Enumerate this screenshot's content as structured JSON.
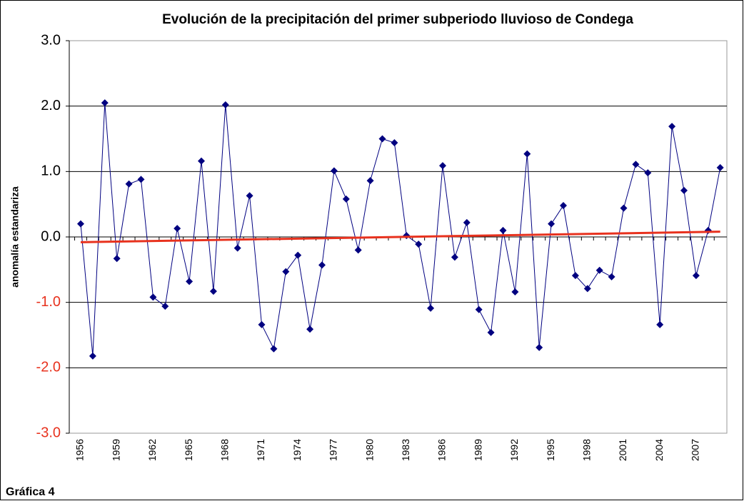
{
  "chart_data": {
    "type": "line",
    "title": "Evolución de la precipitación del primer subperiodo lluvioso de Condega",
    "ylabel": "anomalía estandariza",
    "footer": "Gráfica 4",
    "categories": [
      "1956",
      null,
      null,
      "1959",
      null,
      null,
      "1962",
      null,
      null,
      "1965",
      null,
      null,
      "1968",
      null,
      null,
      "1971",
      null,
      null,
      "1974",
      null,
      null,
      "1977",
      null,
      null,
      "1980",
      null,
      null,
      "1983",
      null,
      null,
      "1986",
      null,
      null,
      "1989",
      null,
      null,
      "1992",
      null,
      null,
      "1995",
      null,
      null,
      "1998",
      null,
      null,
      "2001",
      null,
      null,
      "2004",
      null,
      null,
      "2007",
      null,
      null
    ],
    "series": [
      {
        "color": "#000080",
        "values": [
          0.2,
          -1.82,
          2.05,
          -0.33,
          0.81,
          0.88,
          -0.92,
          -1.06,
          0.13,
          -0.68,
          1.16,
          -0.83,
          2.02,
          -0.17,
          0.63,
          -1.34,
          -1.71,
          -0.53,
          -0.28,
          -1.41,
          -0.43,
          1.01,
          0.58,
          -0.2,
          0.86,
          1.5,
          1.44,
          0.02,
          -0.11,
          -1.09,
          1.09,
          -0.31,
          0.22,
          -1.11,
          -1.46,
          0.1,
          -0.84,
          1.27,
          -1.69,
          0.2,
          0.48,
          -0.59,
          -0.79,
          -0.51,
          -0.61,
          0.44,
          1.11,
          0.98,
          -1.34,
          1.69,
          0.71,
          -0.59,
          0.1,
          1.06
        ]
      }
    ],
    "trend": {
      "color": "#e8321e",
      "values": [
        -0.08,
        0.08
      ]
    },
    "ylim": [
      -3,
      3
    ],
    "yticks": [
      {
        "value": -3,
        "label": "-3.0"
      },
      {
        "value": -2,
        "label": "-2.0"
      },
      {
        "value": -1,
        "label": "-1.0"
      },
      {
        "value": 0,
        "label": "0.0"
      },
      {
        "value": 1,
        "label": "1.0"
      },
      {
        "value": 2,
        "label": "2.0"
      },
      {
        "value": 3,
        "label": "3.0"
      }
    ],
    "negative_tick_color": "#e8321e",
    "grid": true
  }
}
